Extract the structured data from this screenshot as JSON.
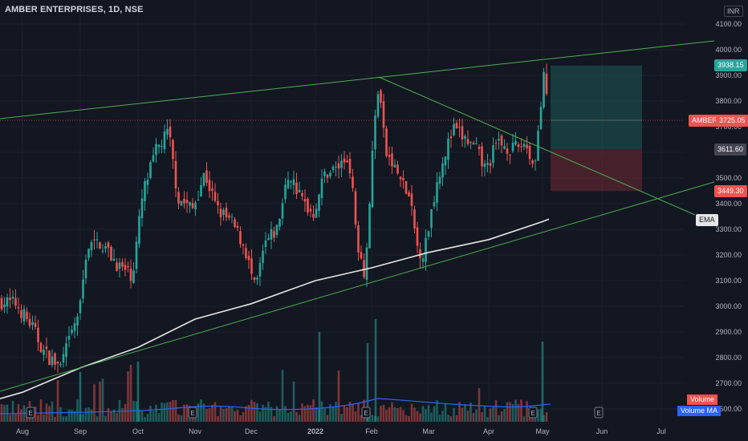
{
  "header": {
    "title": "AMBER ENTERPRISES, 1D, NSE",
    "currency": "INR"
  },
  "badges": {
    "target_price": "3938.15",
    "symbol": "AMBER",
    "last_price": "3725.05",
    "entry_price": "3611.60",
    "stop_price": "3449.30",
    "ema_label": "EMA",
    "volume_label": "Volume",
    "volume_ma_label": "Volume MA"
  },
  "colors": {
    "background": "#131722",
    "up": "#26a69a",
    "down": "#ef5350",
    "trendline": "#4caf50",
    "ema": "#e6e6e6",
    "volume_ma": "#2962ff",
    "profit_zone": "#1e5a55",
    "loss_zone": "#5c2631"
  },
  "chart_data": {
    "type": "candlestick",
    "title": "AMBER ENTERPRISES, 1D, NSE",
    "y_axis_ticks": [
      "4100.00",
      "4000.00",
      "3900.00",
      "3800.00",
      "3700.00",
      "3600.00",
      "3500.00",
      "3400.00",
      "3300.00",
      "3200.00",
      "3100.00",
      "3000.00",
      "2900.00",
      "2800.00",
      "2700.00",
      "2600.00"
    ],
    "y_range": [
      2570,
      4160
    ],
    "x_axis_ticks": [
      "Aug",
      "Sep",
      "Oct",
      "Nov",
      "Dec",
      "2022",
      "Feb",
      "Mar",
      "Apr",
      "May",
      "Jun",
      "Jul"
    ],
    "last_price": 3725.05,
    "position": {
      "target": 3938.15,
      "entry": 3611.6,
      "stop": 3449.3
    },
    "series": [
      {
        "name": "EMA",
        "type": "line",
        "values": [
          [
            "Aug",
            2665
          ],
          [
            "Sep",
            2760
          ],
          [
            "Oct",
            2840
          ],
          [
            "Nov",
            2950
          ],
          [
            "Dec",
            3010
          ],
          [
            "2022",
            3100
          ],
          [
            "Feb",
            3150
          ],
          [
            "Mar",
            3210
          ],
          [
            "Apr",
            3260
          ],
          [
            "May",
            3330
          ]
        ]
      },
      {
        "name": "Volume",
        "type": "bar"
      },
      {
        "name": "Volume MA",
        "type": "line"
      }
    ],
    "earnings_markers": [
      "E",
      "E",
      "E",
      "E",
      "E"
    ]
  }
}
